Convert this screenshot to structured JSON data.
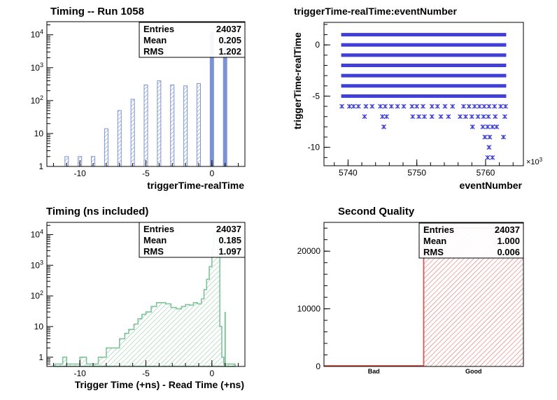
{
  "colors": {
    "hist_blue": "#7b93d3",
    "hist_green": "#7fc39b",
    "hist_red": "#e0564f",
    "scatter_blue": "#4040d8"
  },
  "chart_data": [
    {
      "id": "p1",
      "type": "bar",
      "title": "Timing -- Run 1058",
      "xlabel": "triggerTime-realTime",
      "ylabel": "",
      "xlim": [
        -12.5,
        2.5
      ],
      "ylim": [
        1,
        25000
      ],
      "y_scale": "log",
      "xticks": [
        -10,
        -5,
        0
      ],
      "yticks": [
        {
          "value": 1,
          "label": "1"
        },
        {
          "value": 10,
          "label": "10"
        },
        {
          "value": 100,
          "label": "10",
          "sup": "2"
        },
        {
          "value": 1000,
          "label": "10",
          "sup": "3"
        },
        {
          "value": 10000,
          "label": "10",
          "sup": "4"
        }
      ],
      "x": [
        -11,
        -10,
        -9,
        -8,
        -7,
        -6,
        -5,
        -4,
        -3,
        -2,
        -1,
        0,
        1
      ],
      "values": [
        2,
        2,
        2,
        14,
        50,
        110,
        300,
        400,
        300,
        280,
        330,
        12000,
        11500
      ],
      "stats": [
        {
          "label": "Entries",
          "value": "24037"
        },
        {
          "label": "Mean",
          "value": "0.205"
        },
        {
          "label": "RMS",
          "value": "1.202"
        }
      ],
      "grid": false
    },
    {
      "id": "p2",
      "type": "scatter",
      "title": "triggerTime-realTime:eventNumber",
      "xlabel": "eventNumber",
      "ylabel": "triggerTime-realTime",
      "x_multiplier": "×10",
      "x_multiplier_sup": "3",
      "xlim": [
        5736.5,
        5765.5
      ],
      "ylim": [
        -11.8,
        2.2
      ],
      "xticks": [
        5740,
        5750,
        5760
      ],
      "yticks": [
        0,
        -5,
        -10
      ],
      "bands": [
        {
          "y": 1,
          "x_range": [
            5739,
            5763
          ]
        },
        {
          "y": 0,
          "x_range": [
            5739,
            5763
          ]
        },
        {
          "y": -1,
          "x_range": [
            5739,
            5763
          ]
        },
        {
          "y": -2,
          "x_range": [
            5739,
            5763
          ]
        },
        {
          "y": -3,
          "x_range": [
            5739,
            5763
          ]
        },
        {
          "y": -4,
          "x_range": [
            5739,
            5763
          ]
        },
        {
          "y": -5,
          "x_range": [
            5739,
            5763
          ]
        }
      ],
      "points": [
        [
          5739.1,
          -6
        ],
        [
          5740.2,
          -6
        ],
        [
          5740.8,
          -6
        ],
        [
          5741.5,
          -6
        ],
        [
          5742.6,
          -6
        ],
        [
          5743.5,
          -6
        ],
        [
          5744.7,
          -6
        ],
        [
          5745.4,
          -6
        ],
        [
          5746.3,
          -6
        ],
        [
          5747.2,
          -6
        ],
        [
          5748.1,
          -6
        ],
        [
          5749.3,
          -6
        ],
        [
          5750.0,
          -6
        ],
        [
          5750.9,
          -6
        ],
        [
          5752.2,
          -6
        ],
        [
          5753.0,
          -6
        ],
        [
          5754.1,
          -6
        ],
        [
          5755.2,
          -6
        ],
        [
          5756.8,
          -6
        ],
        [
          5757.6,
          -6
        ],
        [
          5758.4,
          -6
        ],
        [
          5759.1,
          -6
        ],
        [
          5759.8,
          -6
        ],
        [
          5760.5,
          -6
        ],
        [
          5761.3,
          -6
        ],
        [
          5762.2,
          -6
        ],
        [
          5762.9,
          -6
        ],
        [
          5742.4,
          -7
        ],
        [
          5745.0,
          -7
        ],
        [
          5745.6,
          -7
        ],
        [
          5749.4,
          -7
        ],
        [
          5750.3,
          -7
        ],
        [
          5751.1,
          -7
        ],
        [
          5752.2,
          -7
        ],
        [
          5753.5,
          -7
        ],
        [
          5754.6,
          -7
        ],
        [
          5756.3,
          -7
        ],
        [
          5757.1,
          -7
        ],
        [
          5758.0,
          -7
        ],
        [
          5758.9,
          -7
        ],
        [
          5759.7,
          -7
        ],
        [
          5760.4,
          -7
        ],
        [
          5761.4,
          -7
        ],
        [
          5762.8,
          -7
        ],
        [
          5745.2,
          -8
        ],
        [
          5758.1,
          -8
        ],
        [
          5759.6,
          -8
        ],
        [
          5760.3,
          -8
        ],
        [
          5761.0,
          -8
        ],
        [
          5761.6,
          -8
        ],
        [
          5759.9,
          -9
        ],
        [
          5760.6,
          -9
        ],
        [
          5762.6,
          -9
        ],
        [
          5760.5,
          -10
        ],
        [
          5760.3,
          -11
        ],
        [
          5761.0,
          -11
        ]
      ],
      "grid": false
    },
    {
      "id": "p3",
      "type": "area",
      "title": "Timing (ns included)",
      "xlabel": "Trigger Time (+ns) - Read Time (+ns)",
      "ylabel": "",
      "xlim": [
        -12.5,
        2.5
      ],
      "ylim": [
        0.5,
        25000
      ],
      "y_scale": "log",
      "xticks": [
        -10,
        -5,
        0
      ],
      "yticks": [
        {
          "value": 1,
          "label": "1"
        },
        {
          "value": 10,
          "label": "10"
        },
        {
          "value": 100,
          "label": "10",
          "sup": "2"
        },
        {
          "value": 1000,
          "label": "10",
          "sup": "3"
        },
        {
          "value": 10000,
          "label": "10",
          "sup": "4"
        }
      ],
      "bin_width": 0.15,
      "steps": [
        [
          -11.9,
          0.6
        ],
        [
          -11.3,
          1
        ],
        [
          -11.0,
          0.6
        ],
        [
          -10.0,
          1
        ],
        [
          -9.5,
          0.6
        ],
        [
          -8.6,
          1
        ],
        [
          -8.0,
          2
        ],
        [
          -7.6,
          2
        ],
        [
          -7.0,
          4
        ],
        [
          -6.6,
          6
        ],
        [
          -6.3,
          8
        ],
        [
          -5.9,
          12
        ],
        [
          -5.6,
          18
        ],
        [
          -5.3,
          25
        ],
        [
          -5.0,
          30
        ],
        [
          -4.6,
          45
        ],
        [
          -4.2,
          60
        ],
        [
          -3.8,
          60
        ],
        [
          -3.5,
          55
        ],
        [
          -3.1,
          42
        ],
        [
          -2.7,
          38
        ],
        [
          -2.3,
          45
        ],
        [
          -2.0,
          52
        ],
        [
          -1.7,
          50
        ],
        [
          -1.4,
          60
        ],
        [
          -1.1,
          55
        ],
        [
          -0.8,
          80
        ],
        [
          -0.6,
          160
        ],
        [
          -0.4,
          350
        ],
        [
          -0.2,
          900
        ],
        [
          0.0,
          3500
        ],
        [
          0.15,
          12000
        ],
        [
          0.3,
          10000
        ],
        [
          0.45,
          2000
        ],
        [
          0.6,
          10
        ],
        [
          0.75,
          1
        ],
        [
          0.9,
          0.6
        ],
        [
          1.6,
          0.6
        ]
      ],
      "spike": [
        0.95,
        30
      ],
      "stats": [
        {
          "label": "Entries",
          "value": "24037"
        },
        {
          "label": "Mean",
          "value": "0.185"
        },
        {
          "label": "RMS",
          "value": "1.097"
        }
      ],
      "grid": false
    },
    {
      "id": "p4",
      "type": "bar",
      "title": "Second Quality",
      "xlabel": "",
      "ylabel": "",
      "categories": [
        "Bad",
        "Good"
      ],
      "values": [
        0,
        24037
      ],
      "ylim": [
        0,
        25000
      ],
      "yticks": [
        0,
        10000,
        20000
      ],
      "stats": [
        {
          "label": "Entries",
          "value": "24037"
        },
        {
          "label": "Mean",
          "value": "1.000"
        },
        {
          "label": "RMS",
          "value": "0.006"
        }
      ],
      "grid": false
    }
  ]
}
